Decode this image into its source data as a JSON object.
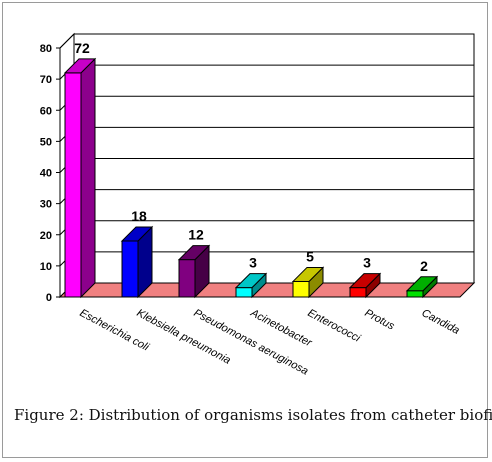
{
  "figure_caption": "Figure 2: Distribution of organisms isolates from catheter biofilm",
  "chart_data": {
    "type": "bar",
    "categories": [
      "Escherichia coli",
      "Klebsiella pneumonia",
      "Pseudomonas aeruginosa",
      "Acinetobacter",
      "Enterococci",
      "Protus",
      "Candida"
    ],
    "values": [
      72,
      18,
      12,
      3,
      5,
      3,
      2
    ],
    "bar_colors": [
      "#ff00ff",
      "#0000ff",
      "#800080",
      "#00ffff",
      "#ffff00",
      "#ff0000",
      "#00e000"
    ],
    "ylim": [
      0,
      80
    ],
    "yticks": [
      "0",
      "10",
      "20",
      "30",
      "40",
      "50",
      "60",
      "70",
      "80"
    ],
    "data_labels_shown": true,
    "grid": "horizontal",
    "style": "3d",
    "floor_color": "#f08080",
    "title": "",
    "xlabel": "",
    "ylabel": ""
  }
}
